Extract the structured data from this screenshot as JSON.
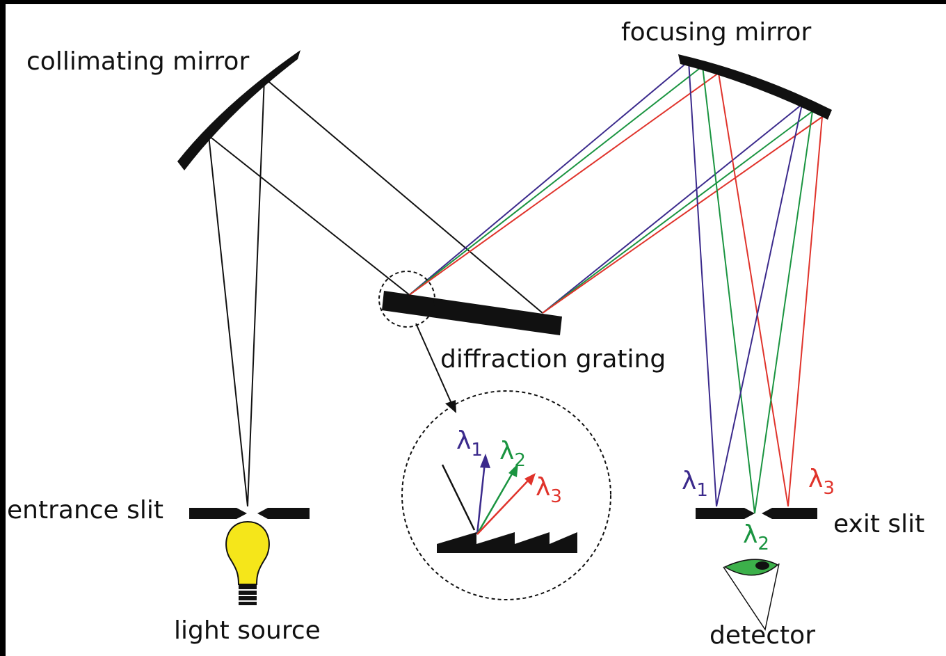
{
  "labels": {
    "collimating_mirror": "collimating mirror",
    "focusing_mirror": "focusing mirror",
    "diffraction_grating": "diffraction grating",
    "entrance_slit": "entrance slit",
    "light_source": "light source",
    "exit_slit": "exit slit",
    "detector": "detector"
  },
  "inset_labels": [
    {
      "symbol": "λ",
      "subscript": "1"
    },
    {
      "symbol": "λ",
      "subscript": "2"
    },
    {
      "symbol": "λ",
      "subscript": "3"
    }
  ],
  "exit_labels": [
    {
      "symbol": "λ",
      "subscript": "1"
    },
    {
      "symbol": "λ",
      "subscript": "2"
    },
    {
      "symbol": "λ",
      "subscript": "3"
    }
  ]
}
